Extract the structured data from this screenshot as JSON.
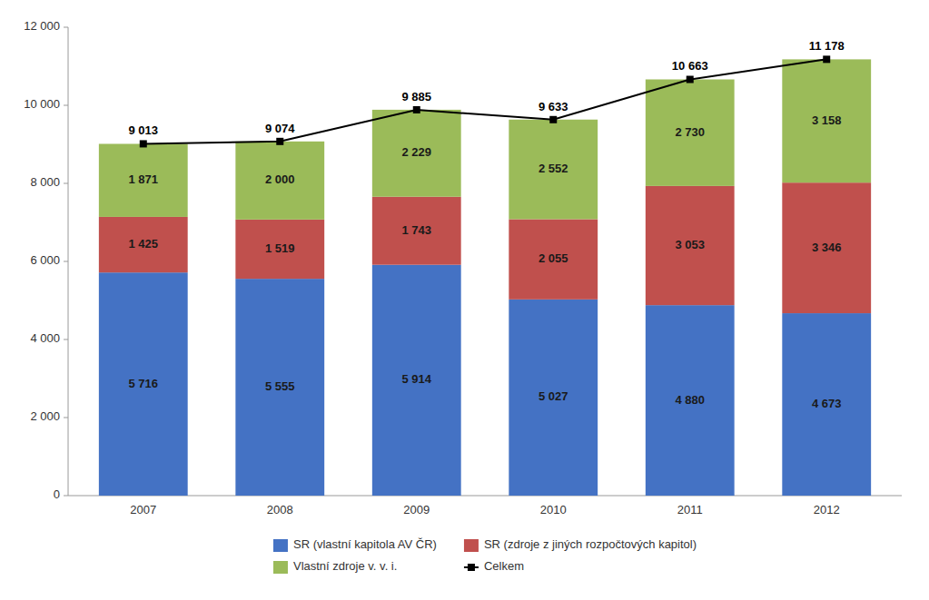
{
  "chart_data": {
    "type": "bar",
    "stacked": true,
    "data_labels": true,
    "grid": false,
    "legend": "bottom",
    "categories": [
      "2007",
      "2008",
      "2009",
      "2010",
      "2011",
      "2012"
    ],
    "ylim": [
      0,
      12000
    ],
    "yticks": [
      0,
      {
        "value": 2000,
        "label": "2 000"
      },
      {
        "value": 4000,
        "label": "4 000"
      },
      {
        "value": 6000,
        "label": "6 000"
      },
      {
        "value": 8000,
        "label": "8 000"
      },
      {
        "value": 10000,
        "label": "10 000"
      },
      {
        "value": 12000,
        "label": "12 000"
      }
    ],
    "series": [
      {
        "name": "SR (vlastní kapitola AV ČR)",
        "type": "bar",
        "color": "#4472C4",
        "values": [
          5716,
          5555,
          5914,
          5027,
          4880,
          4673
        ],
        "value_labels": [
          "5 716",
          "5 555",
          "5 914",
          "5 027",
          "4 880",
          "4 673"
        ]
      },
      {
        "name": "SR (zdroje z jiných rozpočtových kapitol)",
        "type": "bar",
        "color": "#C0504D",
        "values": [
          1425,
          1519,
          1743,
          2055,
          3053,
          3346
        ],
        "value_labels": [
          "1 425",
          "1 519",
          "1 743",
          "2 055",
          "3 053",
          "3 346"
        ]
      },
      {
        "name": "Vlastní zdroje v. v. i.",
        "type": "bar",
        "color": "#9BBB59",
        "values": [
          1871,
          2000,
          2229,
          2552,
          2730,
          3158
        ],
        "value_labels": [
          "1 871",
          "2 000",
          "2 229",
          "2 552",
          "2 730",
          "3 158"
        ]
      },
      {
        "name": "Celkem",
        "type": "line",
        "color": "#000000",
        "marker": "square",
        "values": [
          9013,
          9074,
          9885,
          9633,
          10663,
          11178
        ],
        "value_labels": [
          "9 013",
          "9 074",
          "9 885",
          "9 633",
          "10 663",
          "11 178"
        ]
      }
    ]
  }
}
